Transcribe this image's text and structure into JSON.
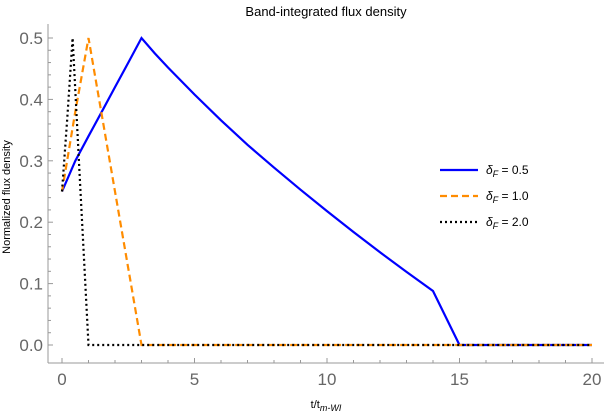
{
  "chart_data": {
    "type": "line",
    "title": "Band-integrated flux density",
    "xlabel": "t/t_{m-WI}",
    "ylabel": "Normalized flux density",
    "xlim": [
      0,
      20
    ],
    "ylim": [
      0,
      0.5
    ],
    "xticks": [
      0,
      5,
      10,
      15,
      20
    ],
    "yticks": [
      0.0,
      0.1,
      0.2,
      0.3,
      0.4,
      0.5
    ],
    "xtick_labels": [
      "0",
      "5",
      "10",
      "15",
      "20"
    ],
    "ytick_labels": [
      "0.0",
      "0.1",
      "0.2",
      "0.3",
      "0.4",
      "0.5"
    ],
    "grid": false,
    "legend_position": "right",
    "series": [
      {
        "name": "δF = 0.5",
        "legend_symbol": "δ",
        "legend_sub": "F",
        "legend_value": " = 0.5",
        "color": "#0000ff",
        "style": "solid",
        "x": [
          0,
          0.5,
          1,
          1.5,
          2,
          2.5,
          3,
          3.5,
          4,
          5,
          6,
          7,
          8,
          9,
          10,
          11,
          12,
          13,
          14,
          15,
          20
        ],
        "y": [
          0.25,
          0.3,
          0.34,
          0.38,
          0.42,
          0.46,
          0.5,
          0.475,
          0.452,
          0.408,
          0.366,
          0.326,
          0.289,
          0.253,
          0.218,
          0.184,
          0.151,
          0.119,
          0.088,
          0.0,
          0.0
        ]
      },
      {
        "name": "δF = 1.0",
        "legend_symbol": "δ",
        "legend_sub": "F",
        "legend_value": " = 1.0",
        "color": "#ff8c00",
        "style": "dashed",
        "x": [
          0,
          0.5,
          1,
          2,
          3,
          20
        ],
        "y": [
          0.25,
          0.38,
          0.5,
          0.25,
          0.0,
          0.0
        ]
      },
      {
        "name": "δF = 2.0",
        "legend_symbol": "δ",
        "legend_sub": "F",
        "legend_value": " = 2.0",
        "color": "#000000",
        "style": "dotted",
        "x": [
          0,
          0.2,
          0.4,
          0.7,
          1.0,
          20
        ],
        "y": [
          0.25,
          0.37,
          0.5,
          0.25,
          0.0,
          0.0
        ]
      }
    ]
  }
}
